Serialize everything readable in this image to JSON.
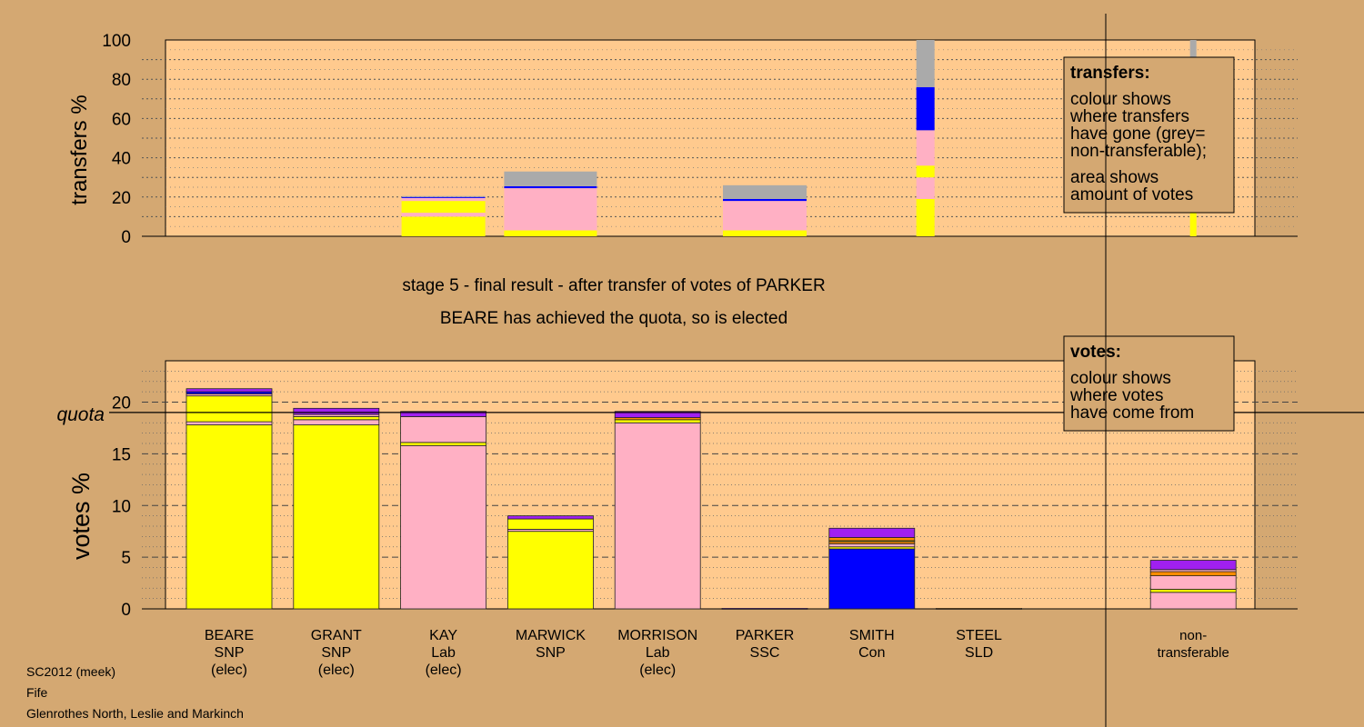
{
  "colors": {
    "background": "#d4a872",
    "plot_bg": "#ffca8e",
    "SNP": "#ffff00",
    "Lab": "#ffb0c4",
    "Con": "#0000ff",
    "SSC": "#a020f0",
    "SLD": "#ff8c00",
    "nontransferable": "#aaaaaa",
    "navy": "#00008b"
  },
  "header": {
    "stage_title": "stage 5 - final result - after transfer of votes of PARKER",
    "stage_subtitle": "BEARE has achieved the quota, so is elected"
  },
  "footer": {
    "line1": "SC2012 (meek)",
    "line2": "Fife",
    "line3": "Glenrothes North, Leslie and Markinch"
  },
  "legends": {
    "transfers": {
      "title": "transfers:",
      "lines": [
        "colour shows",
        "where transfers",
        "have gone (grey=",
        "non-transferable);",
        "area shows",
        "amount of votes"
      ]
    },
    "votes": {
      "title": "votes:",
      "lines": [
        "colour shows",
        "where votes",
        "have come from"
      ]
    }
  },
  "chart_data": [
    {
      "type": "bar",
      "stacked": true,
      "ylabel": "transfers %",
      "ylim": [
        0,
        100
      ],
      "yticks": [
        0,
        20,
        40,
        60,
        80,
        100
      ],
      "grid": true,
      "bars": [
        {
          "x": 3,
          "width": 0.92,
          "segments": [
            [
              "SNP",
              10
            ],
            [
              "Lab",
              2
            ],
            [
              "SNP",
              6
            ],
            [
              "Lab",
              1.5
            ],
            [
              "Con",
              0.5
            ],
            [
              "nontransferable",
              0.5
            ]
          ]
        },
        {
          "x": 4,
          "width": 1.02,
          "segments": [
            [
              "SNP",
              3
            ],
            [
              "Lab",
              21.5
            ],
            [
              "Con",
              1
            ],
            [
              "nontransferable",
              7.5
            ]
          ]
        },
        {
          "x": 6,
          "width": 0.92,
          "segments": [
            [
              "SNP",
              3
            ],
            [
              "Lab",
              15
            ],
            [
              "Con",
              1
            ],
            [
              "nontransferable",
              7
            ]
          ]
        },
        {
          "x": 7.5,
          "width": 0.2,
          "segments": [
            [
              "SNP",
              19
            ],
            [
              "Lab",
              11
            ],
            [
              "SNP",
              6
            ],
            [
              "Lab",
              18
            ],
            [
              "Con",
              22
            ],
            [
              "nontransferable",
              24
            ]
          ]
        },
        {
          "x": 10,
          "width": 0.07,
          "segments": [
            [
              "SNP",
              15
            ],
            [
              "Lab",
              8
            ],
            [
              "SNP",
              4
            ],
            [
              "Lab",
              12
            ],
            [
              "Con",
              32
            ],
            [
              "nontransferable",
              29
            ]
          ]
        }
      ]
    },
    {
      "type": "bar",
      "stacked": true,
      "ylabel": "votes %",
      "ylim": [
        0,
        24
      ],
      "yticks": [
        0,
        5,
        10,
        15,
        20
      ],
      "quota": 19,
      "quota_label": "quota",
      "grid": true,
      "candidates": [
        {
          "name": "BEARE",
          "party": "SNP",
          "status": "(elec)",
          "segments": [
            [
              "SNP",
              17.8
            ],
            [
              "Lab",
              0.3
            ],
            [
              "SNP",
              2.5
            ],
            [
              "Lab",
              0.2
            ],
            [
              "Con",
              0.2
            ],
            [
              "SSC",
              0.3
            ]
          ]
        },
        {
          "name": "GRANT",
          "party": "SNP",
          "status": "(elec)",
          "segments": [
            [
              "SNP",
              17.8
            ],
            [
              "Lab",
              0.5
            ],
            [
              "SNP",
              0.3
            ],
            [
              "Lab",
              0.2
            ],
            [
              "SSC",
              0.6
            ]
          ]
        },
        {
          "name": "KAY",
          "party": "Lab",
          "status": "(elec)",
          "segments": [
            [
              "Lab",
              15.8
            ],
            [
              "SNP",
              0.3
            ],
            [
              "Lab",
              2.5
            ],
            [
              "SSC",
              0.5
            ]
          ]
        },
        {
          "name": "MARWICK",
          "party": "SNP",
          "status": "",
          "segments": [
            [
              "SNP",
              7.5
            ],
            [
              "Lab",
              0.2
            ],
            [
              "SNP",
              1.0
            ],
            [
              "SSC",
              0.3
            ]
          ]
        },
        {
          "name": "MORRISON",
          "party": "Lab",
          "status": "(elec)",
          "segments": [
            [
              "Lab",
              18
            ],
            [
              "SNP",
              0.3
            ],
            [
              "SLD",
              0.2
            ],
            [
              "SSC",
              0.6
            ]
          ]
        },
        {
          "name": "PARKER",
          "party": "SSC",
          "status": "",
          "segments": [
            [
              "SSC",
              0.05
            ]
          ]
        },
        {
          "name": "SMITH",
          "party": "Con",
          "status": "",
          "segments": [
            [
              "Con",
              5.8
            ],
            [
              "SNP",
              0.2
            ],
            [
              "Lab",
              0.3
            ],
            [
              "SLD",
              0.2
            ],
            [
              "SNP",
              0.1
            ],
            [
              "SLD",
              0.3
            ],
            [
              "SSC",
              0.9
            ]
          ]
        },
        {
          "name": "STEEL",
          "party": "SLD",
          "status": "",
          "segments": [
            [
              "SLD",
              0.05
            ]
          ]
        },
        {
          "name": "non-",
          "party": "transferable",
          "status": "",
          "segments": [
            [
              "Lab",
              1.6
            ],
            [
              "SNP",
              0.3
            ],
            [
              "Lab",
              1.3
            ],
            [
              "SLD",
              0.4
            ],
            [
              "Lab",
              0.2
            ],
            [
              "SSC",
              0.9
            ]
          ]
        }
      ]
    }
  ]
}
